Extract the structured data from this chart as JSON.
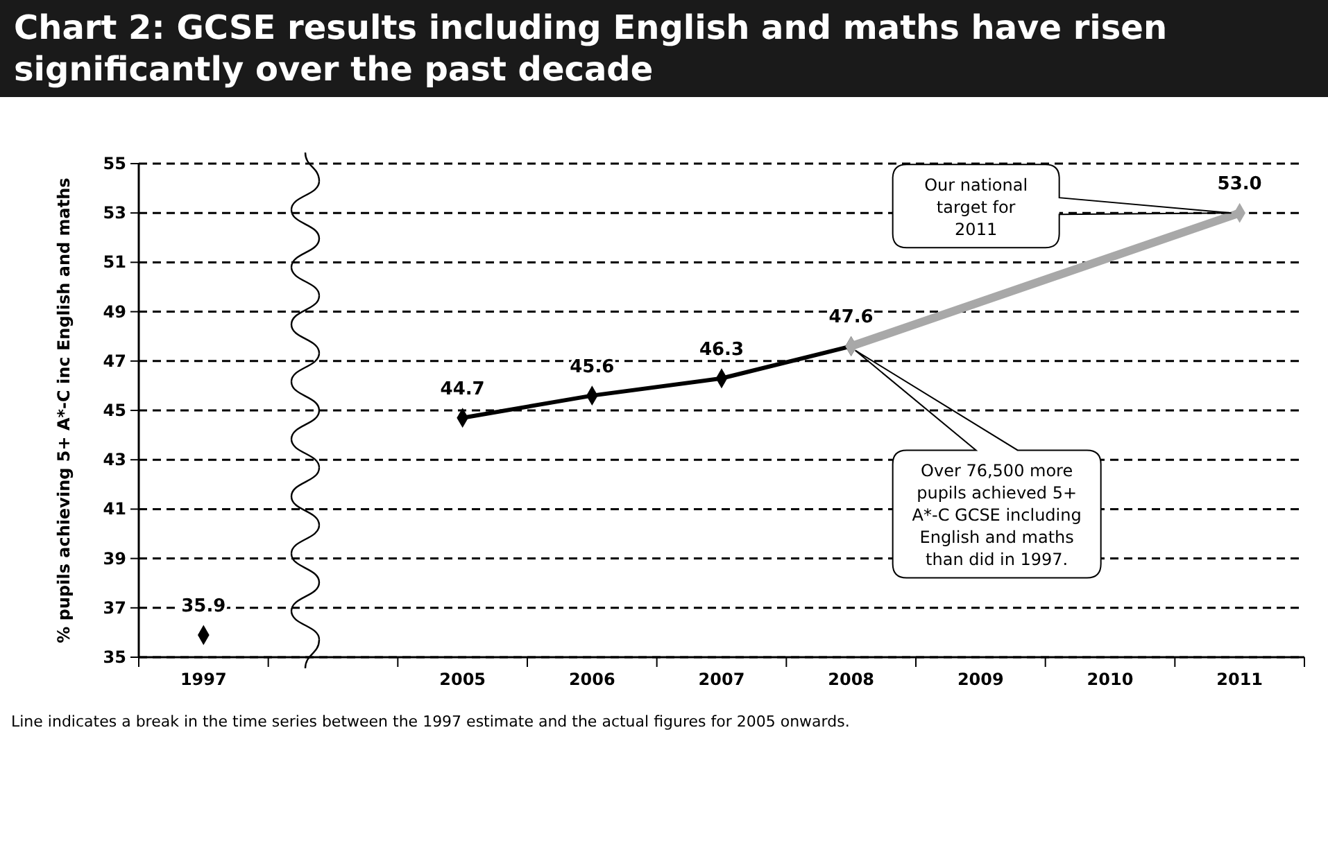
{
  "chart_data": {
    "type": "line",
    "title": "Chart 2: GCSE results including English and maths have risen significantly over the past decade",
    "ylabel": "% pupils achieving 5+ A*-C inc English and maths",
    "categories": [
      "1997",
      null,
      "2005",
      "2006",
      "2007",
      "2008",
      "2009",
      "2010",
      "2011"
    ],
    "series": [
      {
        "type": "scatter",
        "color": "#000000",
        "values": [
          35.9,
          null,
          null,
          null,
          null,
          null,
          null,
          null,
          null
        ],
        "value_labels": [
          "35.9",
          null,
          null,
          null,
          null,
          null,
          null,
          null,
          null
        ]
      },
      {
        "color": "#000000",
        "values": [
          null,
          null,
          44.7,
          45.6,
          46.3,
          47.6,
          null,
          null,
          null
        ],
        "value_labels": [
          null,
          null,
          "44.7",
          "45.6",
          "46.3",
          "47.6",
          null,
          null,
          null
        ]
      },
      {
        "color": "#a8a8a8",
        "values": [
          null,
          null,
          null,
          null,
          null,
          47.6,
          null,
          null,
          53.0
        ],
        "value_labels": [
          null,
          null,
          null,
          null,
          null,
          null,
          null,
          null,
          "53.0"
        ]
      }
    ],
    "ylim": [
      35,
      55
    ],
    "yticks": [
      35,
      37,
      39,
      41,
      43,
      45,
      47,
      49,
      51,
      53,
      55
    ],
    "grid": "y",
    "marker": "diamond",
    "annotations": [
      "Our national target for 2011",
      "Over 76,500 more pupils achieved 5+ A*-C GCSE including English and maths than did in 1997.",
      "Line indicates a break in the time series between the 1997 estimate and the actual figures for 2005 onwards."
    ]
  }
}
